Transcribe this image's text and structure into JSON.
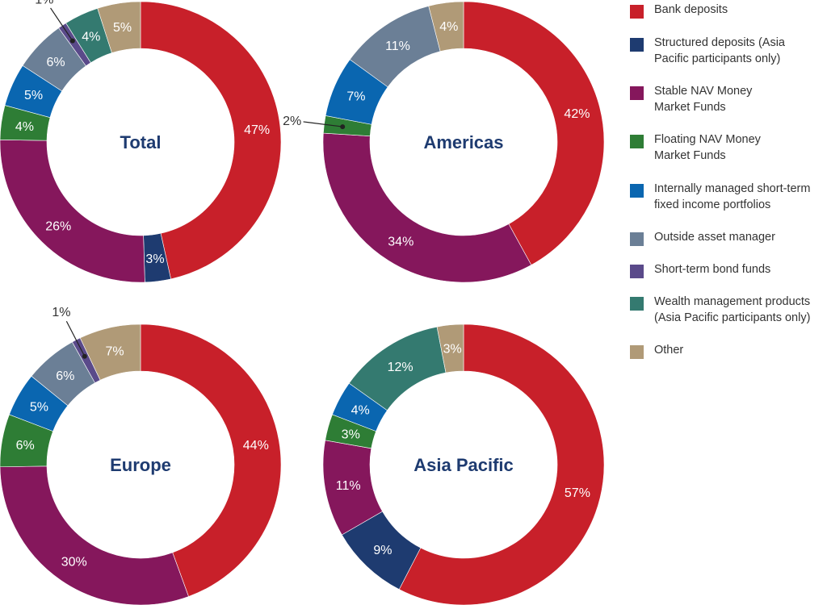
{
  "categories": [
    {
      "key": "bank",
      "label": "Bank deposits",
      "color": "#c8202a"
    },
    {
      "key": "structured",
      "label": "Structured deposits (Asia\nPacific participants only)",
      "color": "#1e3b70"
    },
    {
      "key": "stable",
      "label": "Stable NAV Money\nMarket Funds",
      "color": "#85175c"
    },
    {
      "key": "floating",
      "label": "Floating NAV Money\nMarket Funds",
      "color": "#2e7d35"
    },
    {
      "key": "internal",
      "label": "Internally managed short-term\nfixed income portfolios",
      "color": "#0a66b0"
    },
    {
      "key": "outside",
      "label": "Outside asset manager",
      "color": "#6b7f96"
    },
    {
      "key": "bond",
      "label": "Short-term bond funds",
      "color": "#5a4a8a"
    },
    {
      "key": "wealth",
      "label": "Wealth management products\n(Asia Pacific participants only)",
      "color": "#347a70"
    },
    {
      "key": "other",
      "label": "Other",
      "color": "#b09a77"
    }
  ],
  "chart_data": [
    {
      "type": "pie",
      "title": "Total",
      "slices": [
        {
          "key": "bank",
          "value": 47,
          "label": "47%"
        },
        {
          "key": "structured",
          "value": 3,
          "label": "3%"
        },
        {
          "key": "stable",
          "value": 26,
          "label": "26%"
        },
        {
          "key": "floating",
          "value": 4,
          "label": "4%"
        },
        {
          "key": "internal",
          "value": 5,
          "label": "5%"
        },
        {
          "key": "outside",
          "value": 6,
          "label": "6%"
        },
        {
          "key": "bond",
          "value": 1,
          "label": "1%"
        },
        {
          "key": "wealth",
          "value": 4,
          "label": "4%"
        },
        {
          "key": "other",
          "value": 5,
          "label": "5%"
        }
      ]
    },
    {
      "type": "pie",
      "title": "Americas",
      "slices": [
        {
          "key": "bank",
          "value": 42,
          "label": "42%"
        },
        {
          "key": "stable",
          "value": 34,
          "label": "34%"
        },
        {
          "key": "floating",
          "value": 2,
          "label": "2%"
        },
        {
          "key": "internal",
          "value": 7,
          "label": "7%"
        },
        {
          "key": "outside",
          "value": 11,
          "label": "11%"
        },
        {
          "key": "other",
          "value": 4,
          "label": "4%"
        }
      ]
    },
    {
      "type": "pie",
      "title": "Europe",
      "slices": [
        {
          "key": "bank",
          "value": 44,
          "label": "44%"
        },
        {
          "key": "stable",
          "value": 30,
          "label": "30%"
        },
        {
          "key": "floating",
          "value": 6,
          "label": "6%"
        },
        {
          "key": "internal",
          "value": 5,
          "label": "5%"
        },
        {
          "key": "outside",
          "value": 6,
          "label": "6%"
        },
        {
          "key": "bond",
          "value": 1,
          "label": "1%"
        },
        {
          "key": "other",
          "value": 7,
          "label": "7%"
        }
      ]
    },
    {
      "type": "pie",
      "title": "Asia Pacific",
      "slices": [
        {
          "key": "bank",
          "value": 57,
          "label": "57%"
        },
        {
          "key": "structured",
          "value": 9,
          "label": "9%"
        },
        {
          "key": "stable",
          "value": 11,
          "label": "11%"
        },
        {
          "key": "floating",
          "value": 3,
          "label": "3%"
        },
        {
          "key": "internal",
          "value": 4,
          "label": "4%"
        },
        {
          "key": "wealth",
          "value": 12,
          "label": "12%"
        },
        {
          "key": "other",
          "value": 3,
          "label": "3%"
        }
      ]
    }
  ]
}
